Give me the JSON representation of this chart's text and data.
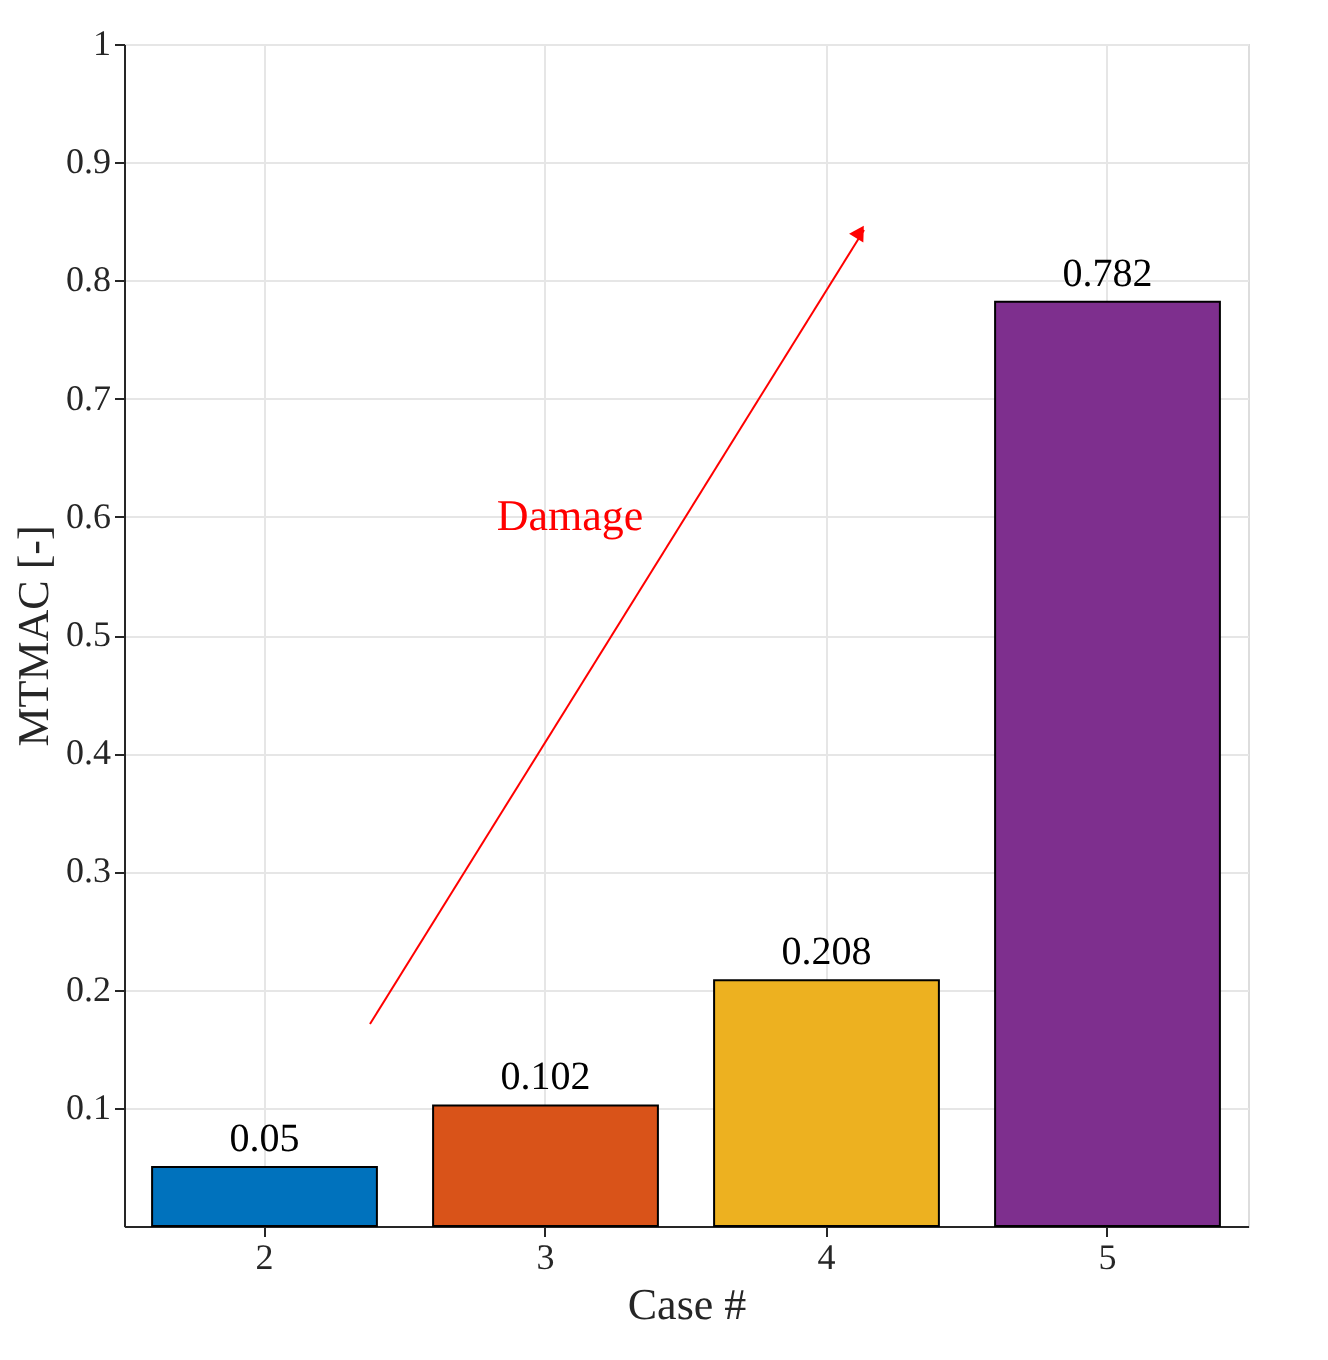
{
  "chart_data": {
    "type": "bar",
    "xlabel": "Case #",
    "ylabel": "MTMAC [-]",
    "categories": [
      "2",
      "3",
      "4",
      "5"
    ],
    "values": [
      0.05,
      0.102,
      0.208,
      0.782
    ],
    "colors": [
      "#0072bd",
      "#d95319",
      "#edb120",
      "#7e2f8e"
    ],
    "ylim": [
      0,
      1
    ],
    "yticks": [
      0.1,
      0.2,
      0.3,
      0.4,
      0.5,
      0.6,
      0.7,
      0.8,
      0.9,
      1
    ],
    "grid": true,
    "data_labels": true,
    "annotations": [
      "Damage"
    ]
  }
}
